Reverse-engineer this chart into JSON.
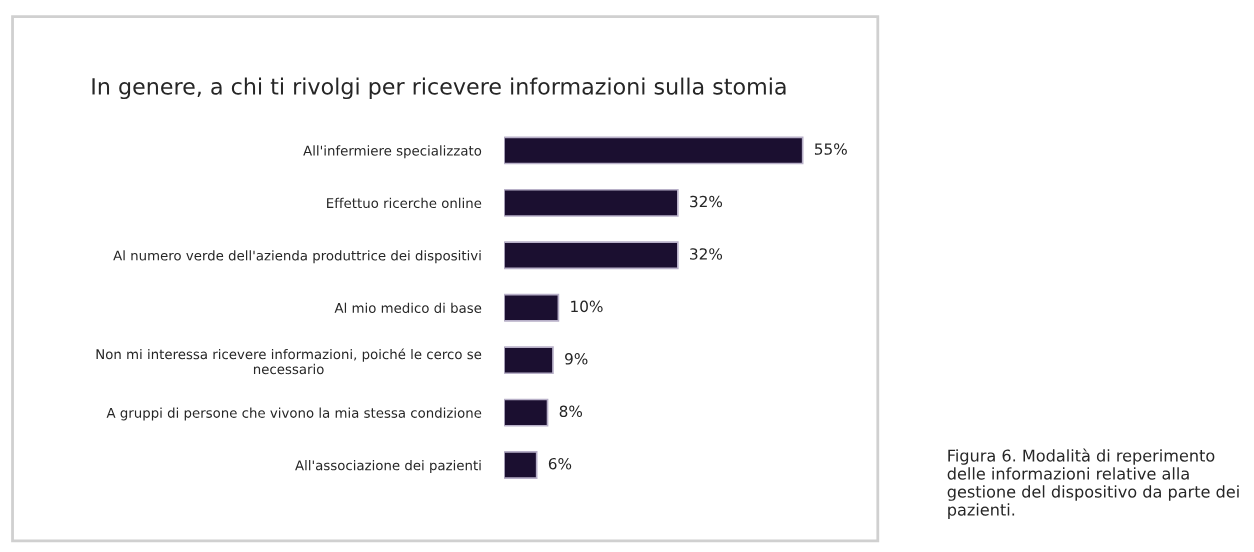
{
  "chart_data": {
    "type": "bar",
    "orientation": "horizontal",
    "title": "In genere, a chi ti rivolgi per ricevere informazioni sulla stomia",
    "categories": [
      "All'infermiere specializzato",
      "Effettuo ricerche online",
      "Al numero verde dell'azienda produttrice dei dispositivi",
      "Al mio medico di base",
      "Non mi interessa ricevere informazioni, poiché le cerco se\nnecessario",
      "A gruppi di persone che vivono la mia stessa condizione",
      "All'associazione dei pazienti"
    ],
    "values": [
      55,
      32,
      32,
      10,
      9,
      8,
      6
    ],
    "value_labels": [
      "55%",
      "32%",
      "32%",
      "10%",
      "9%",
      "8%",
      "6%"
    ],
    "color": "#1b0f30",
    "tick_labels": "y",
    "grid": false,
    "legend": false,
    "annotations": [
      "Figura 6. Modalità di reperimento delle informazioni relative alla gestione del dispositivo da parte dei pazienti."
    ]
  }
}
